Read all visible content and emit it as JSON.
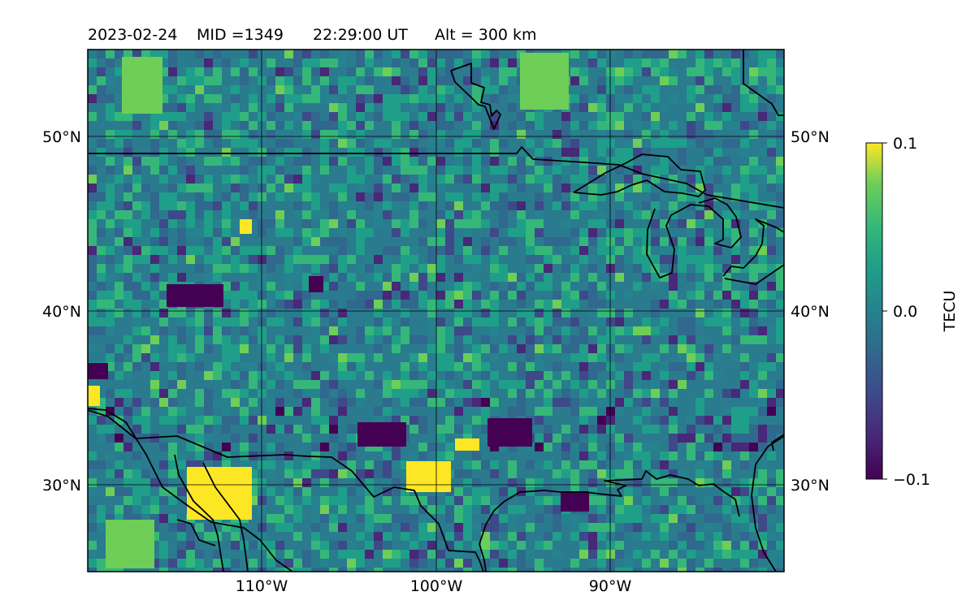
{
  "header": {
    "date": "2023-02-24",
    "mid": "MID =1349",
    "time": "22:29:00  UT",
    "alt": "Alt = 300 km"
  },
  "map": {
    "lon_range": [
      -120,
      -80
    ],
    "lat_range": [
      25,
      55
    ],
    "lat_labels": [
      {
        "lat": 50,
        "text": "50°N"
      },
      {
        "lat": 40,
        "text": "40°N"
      },
      {
        "lat": 30,
        "text": "30°N"
      }
    ],
    "lon_labels": [
      {
        "lon": -110,
        "text": "110°W"
      },
      {
        "lon": -100,
        "text": "100°W"
      },
      {
        "lon": -90,
        "text": "90°W"
      }
    ]
  },
  "colorbar": {
    "label": "TECU",
    "min": -0.1,
    "max": 0.1,
    "ticks": [
      {
        "value": 0.1,
        "text": "0.1"
      },
      {
        "value": 0.0,
        "text": "0.0"
      },
      {
        "value": -0.1,
        "text": "−0.1"
      }
    ],
    "colormap": "viridis"
  },
  "colors": {
    "viridis_low": "#440154",
    "viridis_mid": "#21918c",
    "viridis_high": "#fde725",
    "coastline": "#000000"
  }
}
